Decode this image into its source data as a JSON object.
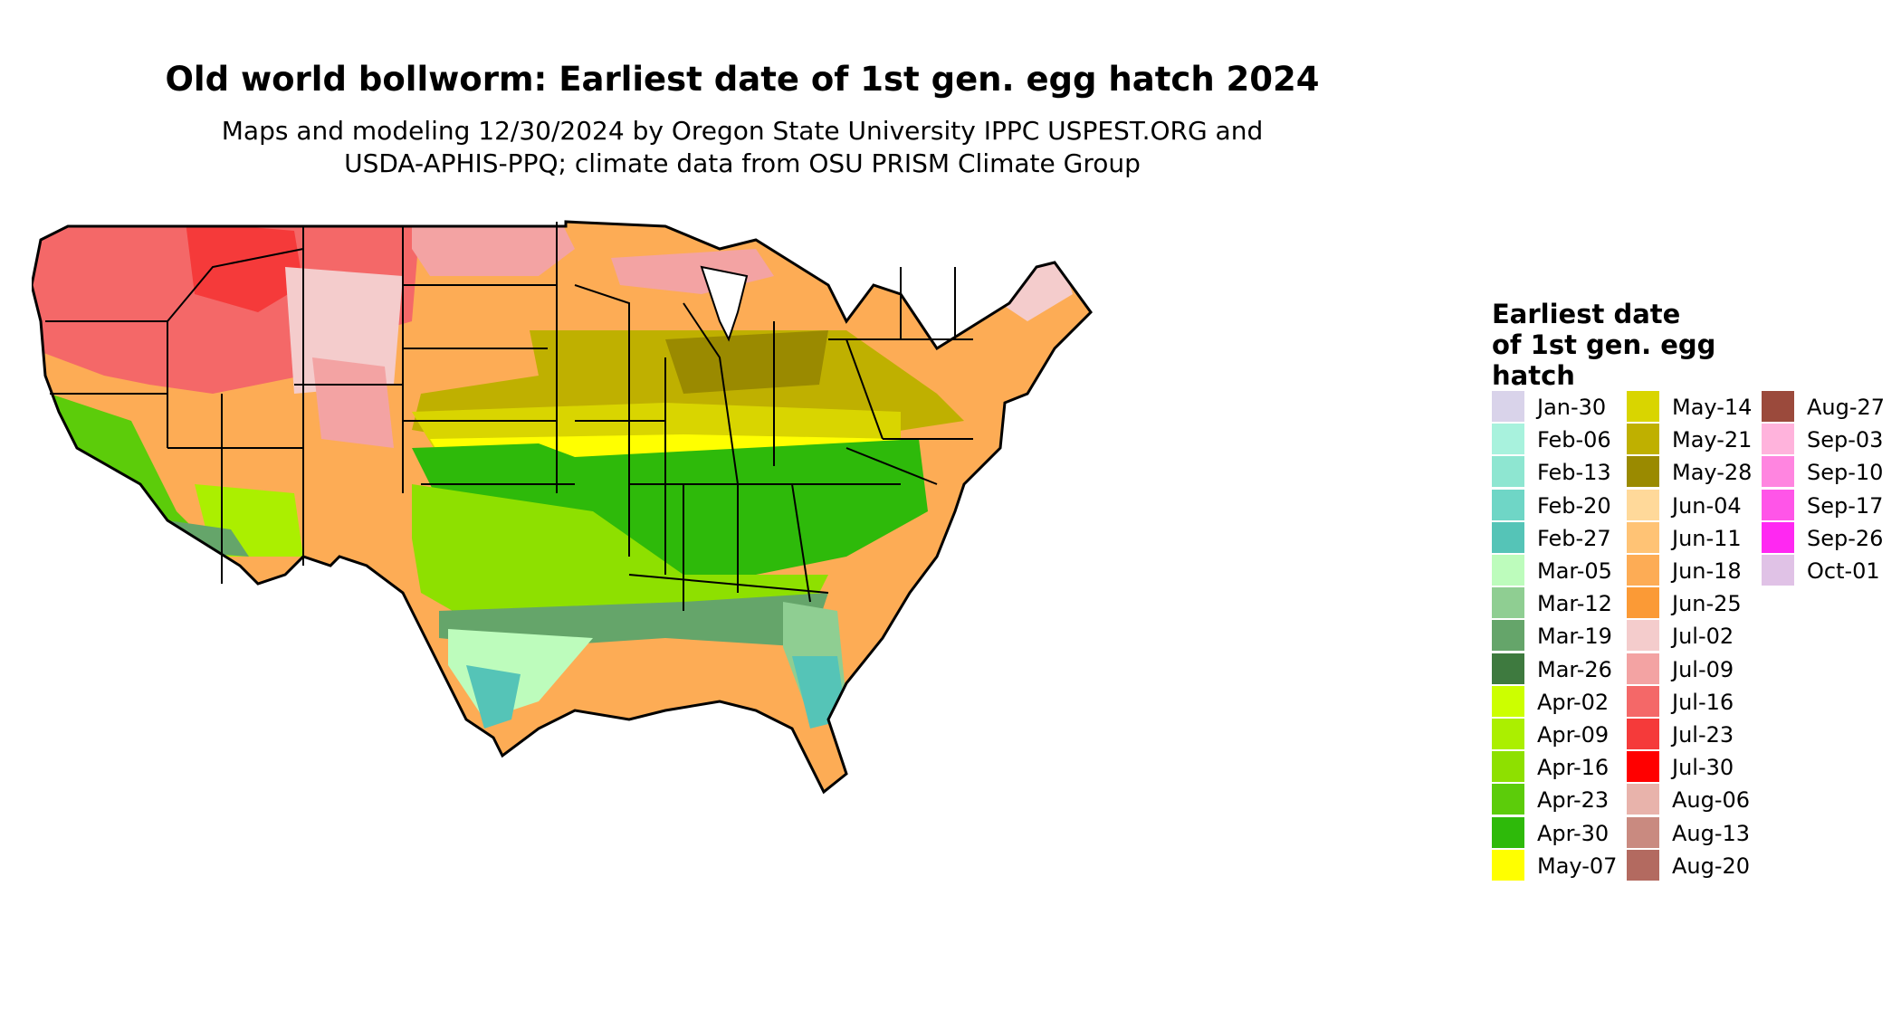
{
  "title": "Old world bollworm: Earliest date of 1st gen. egg hatch 2024",
  "subtitle_line1": "Maps and modeling 12/30/2024 by Oregon State University IPPC USPEST.ORG and",
  "subtitle_line2": "USDA-APHIS-PPQ; climate data from OSU PRISM Climate Group",
  "legend": {
    "title_lines": [
      "Earliest date",
      "of 1st gen. egg",
      "hatch"
    ],
    "columns": [
      [
        {
          "label": "Jan-30",
          "color": "#d9d3ea"
        },
        {
          "label": "Feb-06",
          "color": "#a8f2dd"
        },
        {
          "label": "Feb-13",
          "color": "#8ee6d1"
        },
        {
          "label": "Feb-20",
          "color": "#6fd6c6"
        },
        {
          "label": "Feb-27",
          "color": "#55c4b7"
        },
        {
          "label": "Mar-05",
          "color": "#bdfcbc"
        },
        {
          "label": "Mar-12",
          "color": "#8fce92"
        },
        {
          "label": "Mar-19",
          "color": "#65a56a"
        },
        {
          "label": "Mar-26",
          "color": "#3e7a3f"
        },
        {
          "label": "Apr-02",
          "color": "#ccff00"
        },
        {
          "label": "Apr-09",
          "color": "#abef00"
        },
        {
          "label": "Apr-16",
          "color": "#8ee000"
        },
        {
          "label": "Apr-23",
          "color": "#5ccc0a"
        },
        {
          "label": "Apr-30",
          "color": "#2eba0a"
        },
        {
          "label": "May-07",
          "color": "#ffff00"
        }
      ],
      [
        {
          "label": "May-14",
          "color": "#d9d500"
        },
        {
          "label": "May-21",
          "color": "#bfb000"
        },
        {
          "label": "May-28",
          "color": "#9a8a00"
        },
        {
          "label": "Jun-04",
          "color": "#ffd99a"
        },
        {
          "label": "Jun-11",
          "color": "#ffc375"
        },
        {
          "label": "Jun-18",
          "color": "#fdac55"
        },
        {
          "label": "Jun-25",
          "color": "#fb9a36"
        },
        {
          "label": "Jul-02",
          "color": "#f4cccc"
        },
        {
          "label": "Jul-09",
          "color": "#f3a3a3"
        },
        {
          "label": "Jul-16",
          "color": "#f46868"
        },
        {
          "label": "Jul-23",
          "color": "#f53a3a"
        },
        {
          "label": "Jul-30",
          "color": "#ff0000"
        },
        {
          "label": "Aug-06",
          "color": "#e8b3ab"
        },
        {
          "label": "Aug-13",
          "color": "#c98a80"
        },
        {
          "label": "Aug-20",
          "color": "#b36a60"
        }
      ],
      [
        {
          "label": "Aug-27",
          "color": "#9b4a3c"
        },
        {
          "label": "Sep-03",
          "color": "#ffb3dc"
        },
        {
          "label": "Sep-10",
          "color": "#ff85e0"
        },
        {
          "label": "Sep-17",
          "color": "#ff55e8"
        },
        {
          "label": "Sep-26",
          "color": "#ff28f2"
        },
        {
          "label": "Oct-01",
          "color": "#e0c2e6"
        }
      ]
    ]
  }
}
